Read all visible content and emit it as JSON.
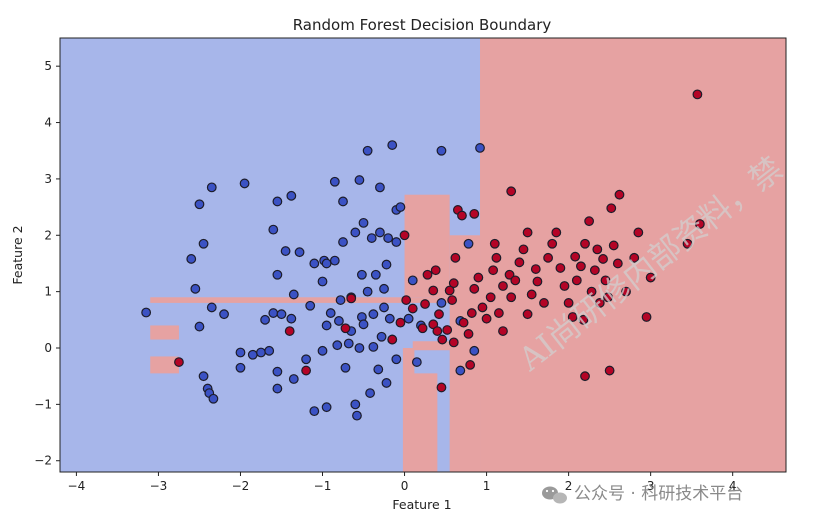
{
  "chart_data": {
    "type": "scatter",
    "title": "Random Forest Decision Boundary",
    "xlabel": "Feature 1",
    "ylabel": "Feature 2",
    "xlim": [
      -4.2,
      4.65
    ],
    "ylim": [
      -2.2,
      5.5
    ],
    "xticks": [
      -4,
      -3,
      -2,
      -1,
      0,
      1,
      2,
      3,
      4
    ],
    "yticks": [
      -2,
      -1,
      0,
      1,
      2,
      3,
      4,
      5
    ],
    "grid": false,
    "colors": {
      "class0_region": "#a7b6ea",
      "class1_region": "#e6a2a2",
      "class0_point": "#3b52c4",
      "class1_point": "#b40426",
      "edge": "#1c1c2a"
    },
    "regions_class1": [
      [
        0.92,
        4.65,
        -2.2,
        5.5
      ],
      [
        0.55,
        0.92,
        -2.2,
        2.0
      ],
      [
        0.0,
        0.55,
        0.9,
        2.72
      ],
      [
        0.1,
        0.4,
        -2.2,
        -0.45
      ],
      [
        -3.1,
        0.55,
        0.8,
        0.9
      ],
      [
        -3.1,
        -2.75,
        0.15,
        0.4
      ],
      [
        -3.1,
        -2.75,
        -0.45,
        -0.15
      ],
      [
        -0.02,
        0.12,
        -2.2,
        0.0
      ],
      [
        0.1,
        0.8,
        -0.04,
        0.12
      ]
    ],
    "series": [
      {
        "class": 0,
        "points": [
          [
            -3.15,
            0.63
          ],
          [
            -2.5,
            0.38
          ],
          [
            -2.35,
            0.72
          ],
          [
            -2.2,
            0.6
          ],
          [
            -2.45,
            -0.5
          ],
          [
            -2.4,
            -0.72
          ],
          [
            -2.38,
            -0.8
          ],
          [
            -2.33,
            -0.9
          ],
          [
            -2.0,
            -0.08
          ],
          [
            -1.85,
            -0.12
          ],
          [
            -1.75,
            -0.08
          ],
          [
            -1.65,
            -0.05
          ],
          [
            -2.0,
            -0.35
          ],
          [
            -1.55,
            -0.42
          ],
          [
            -1.55,
            -0.72
          ],
          [
            -1.35,
            -0.55
          ],
          [
            -1.1,
            -1.12
          ],
          [
            -0.95,
            -1.05
          ],
          [
            -0.72,
            -0.35
          ],
          [
            -0.6,
            -1.0
          ],
          [
            -0.58,
            -1.2
          ],
          [
            -0.42,
            -0.8
          ],
          [
            -0.32,
            -0.38
          ],
          [
            -0.22,
            -0.62
          ],
          [
            -0.1,
            -0.2
          ],
          [
            -1.2,
            -0.2
          ],
          [
            -1.0,
            -0.05
          ],
          [
            -0.82,
            0.05
          ],
          [
            -0.68,
            0.08
          ],
          [
            -0.55,
            0.0
          ],
          [
            -0.38,
            0.02
          ],
          [
            -0.28,
            0.2
          ],
          [
            -0.18,
            0.52
          ],
          [
            -1.7,
            0.5
          ],
          [
            -1.6,
            0.62
          ],
          [
            -1.38,
            0.52
          ],
          [
            -1.15,
            0.75
          ],
          [
            -0.95,
            0.4
          ],
          [
            -0.8,
            0.48
          ],
          [
            -0.65,
            0.3
          ],
          [
            -0.52,
            0.55
          ],
          [
            -0.38,
            0.6
          ],
          [
            -0.25,
            0.72
          ],
          [
            -1.6,
            2.1
          ],
          [
            -1.45,
            1.72
          ],
          [
            -1.55,
            1.3
          ],
          [
            -1.28,
            1.7
          ],
          [
            -1.1,
            1.5
          ],
          [
            -0.98,
            1.55
          ],
          [
            -0.85,
            1.55
          ],
          [
            -0.75,
            1.88
          ],
          [
            -0.6,
            2.05
          ],
          [
            -0.5,
            2.22
          ],
          [
            -0.4,
            1.95
          ],
          [
            -0.3,
            2.05
          ],
          [
            -0.2,
            1.95
          ],
          [
            -0.52,
            1.3
          ],
          [
            -0.45,
            1.0
          ],
          [
            -0.35,
            1.3
          ],
          [
            -0.22,
            1.48
          ],
          [
            -0.1,
            1.88
          ],
          [
            -0.55,
            2.98
          ],
          [
            -0.85,
            2.95
          ],
          [
            -0.75,
            2.6
          ],
          [
            -0.45,
            3.5
          ],
          [
            -0.15,
            3.6
          ],
          [
            -0.3,
            2.85
          ],
          [
            -0.1,
            2.45
          ],
          [
            -2.55,
            1.05
          ],
          [
            -2.6,
            1.58
          ],
          [
            -2.45,
            1.85
          ],
          [
            -2.5,
            2.55
          ],
          [
            -2.35,
            2.85
          ],
          [
            -1.95,
            2.92
          ],
          [
            -1.55,
            2.6
          ],
          [
            -1.38,
            2.7
          ],
          [
            -0.95,
            1.5
          ],
          [
            -1.0,
            1.18
          ],
          [
            -0.78,
            0.85
          ],
          [
            -0.65,
            0.9
          ],
          [
            -1.35,
            0.95
          ],
          [
            -1.5,
            0.6
          ],
          [
            -0.9,
            0.62
          ],
          [
            -0.5,
            0.42
          ],
          [
            -0.15,
            0.15
          ],
          [
            0.05,
            0.52
          ],
          [
            0.2,
            0.4
          ],
          [
            0.15,
            -0.25
          ],
          [
            0.45,
            0.8
          ],
          [
            0.68,
            0.48
          ],
          [
            0.78,
            1.85
          ],
          [
            0.85,
            -0.05
          ],
          [
            0.68,
            -0.4
          ],
          [
            0.45,
            3.5
          ],
          [
            0.92,
            3.55
          ],
          [
            -0.05,
            2.5
          ],
          [
            -0.25,
            1.05
          ],
          [
            0.1,
            1.2
          ]
        ]
      },
      {
        "class": 1,
        "points": [
          [
            -2.75,
            -0.25
          ],
          [
            -1.4,
            0.3
          ],
          [
            -1.2,
            -0.4
          ],
          [
            -0.65,
            0.88
          ],
          [
            -0.72,
            0.35
          ],
          [
            -0.15,
            0.15
          ],
          [
            -0.05,
            0.45
          ],
          [
            0.0,
            2.0
          ],
          [
            0.02,
            0.85
          ],
          [
            0.1,
            0.7
          ],
          [
            0.22,
            0.35
          ],
          [
            0.25,
            0.78
          ],
          [
            0.28,
            1.3
          ],
          [
            0.35,
            1.02
          ],
          [
            0.38,
            1.38
          ],
          [
            0.42,
            0.6
          ],
          [
            0.46,
            0.15
          ],
          [
            0.52,
            0.32
          ],
          [
            0.58,
            0.85
          ],
          [
            0.6,
            1.15
          ],
          [
            0.62,
            1.6
          ],
          [
            0.65,
            2.45
          ],
          [
            0.7,
            2.35
          ],
          [
            0.72,
            0.45
          ],
          [
            0.78,
            0.25
          ],
          [
            0.82,
            0.62
          ],
          [
            0.85,
            1.05
          ],
          [
            0.9,
            1.25
          ],
          [
            0.95,
            0.72
          ],
          [
            1.0,
            0.52
          ],
          [
            1.05,
            0.9
          ],
          [
            1.08,
            1.38
          ],
          [
            1.1,
            1.85
          ],
          [
            1.12,
            1.6
          ],
          [
            1.15,
            0.62
          ],
          [
            1.2,
            1.1
          ],
          [
            1.28,
            1.3
          ],
          [
            1.3,
            0.9
          ],
          [
            1.3,
            2.78
          ],
          [
            1.35,
            1.2
          ],
          [
            1.4,
            1.52
          ],
          [
            1.45,
            1.75
          ],
          [
            1.5,
            0.6
          ],
          [
            1.5,
            2.05
          ],
          [
            1.55,
            0.95
          ],
          [
            1.6,
            1.4
          ],
          [
            1.62,
            1.18
          ],
          [
            1.7,
            0.8
          ],
          [
            1.75,
            1.6
          ],
          [
            1.8,
            1.85
          ],
          [
            1.85,
            2.05
          ],
          [
            1.9,
            1.42
          ],
          [
            1.95,
            1.1
          ],
          [
            2.0,
            0.8
          ],
          [
            2.05,
            0.55
          ],
          [
            2.08,
            1.62
          ],
          [
            2.1,
            1.2
          ],
          [
            2.15,
            1.45
          ],
          [
            2.18,
            0.5
          ],
          [
            2.2,
            1.85
          ],
          [
            2.25,
            2.25
          ],
          [
            2.28,
            1.0
          ],
          [
            2.32,
            1.38
          ],
          [
            2.35,
            1.75
          ],
          [
            2.38,
            0.8
          ],
          [
            2.42,
            1.58
          ],
          [
            2.45,
            1.2
          ],
          [
            2.48,
            0.9
          ],
          [
            2.52,
            2.48
          ],
          [
            2.55,
            1.82
          ],
          [
            2.6,
            1.5
          ],
          [
            2.62,
            2.72
          ],
          [
            2.7,
            1.0
          ],
          [
            2.8,
            1.6
          ],
          [
            2.85,
            2.05
          ],
          [
            2.95,
            0.55
          ],
          [
            3.0,
            1.25
          ],
          [
            3.45,
            1.85
          ],
          [
            3.6,
            2.2
          ],
          [
            3.57,
            4.5
          ],
          [
            2.2,
            -0.5
          ],
          [
            2.5,
            -0.4
          ],
          [
            0.8,
            -0.3
          ],
          [
            0.45,
            -0.7
          ],
          [
            0.35,
            0.42
          ],
          [
            0.6,
            0.1
          ],
          [
            1.2,
            0.3
          ],
          [
            0.85,
            2.38
          ],
          [
            0.55,
            1.02
          ],
          [
            0.4,
            0.3
          ]
        ]
      }
    ]
  },
  "watermark": {
    "diagonal_text": "AI尚研修内部资料，禁",
    "footer_text": "公众号 · 科研技术平台",
    "footer_icon": "wechat-icon"
  }
}
